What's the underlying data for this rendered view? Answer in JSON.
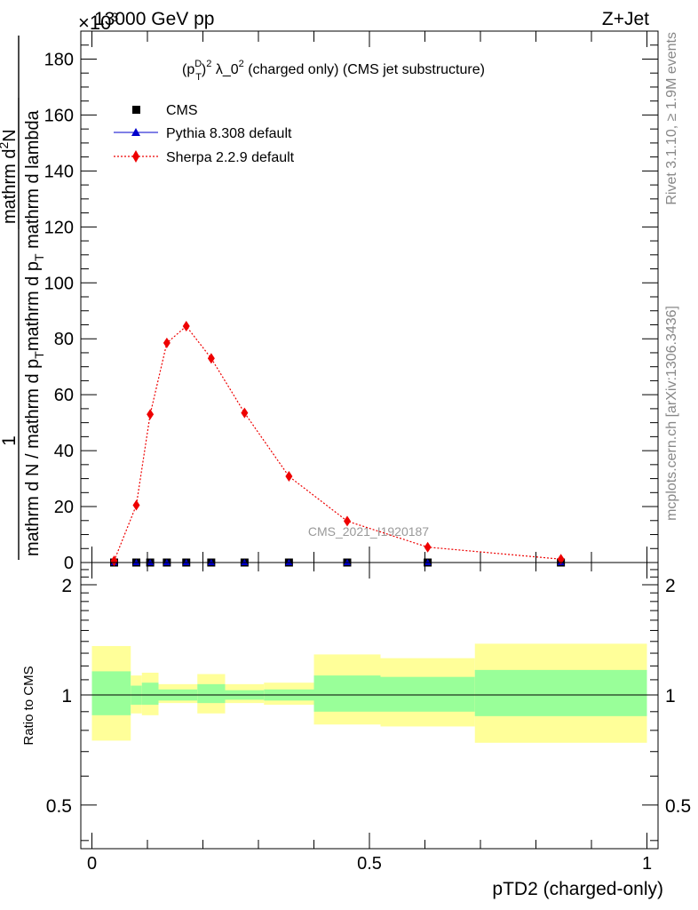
{
  "header": {
    "energy": "13000 GeV pp",
    "process": "Z+Jet",
    "scale_exponent": "×10",
    "scale_power": "3"
  },
  "side": {
    "rivet": "Rivet 3.1.10, ≥ 1.9M events",
    "url": "mcplots.cern.ch [arXiv:1306.3436]"
  },
  "chart_data": [
    {
      "type": "line",
      "title": "(p_T^D)^2 λ_0^2 (charged only) (CMS jet substructure)",
      "title_parts": {
        "a": "(p",
        "sup": "D",
        "sub": "T",
        "b": ")",
        "c": "2",
        "d": " λ_0",
        "e": "2",
        "f": " (charged only) (CMS jet substructure)"
      },
      "ylabel_parts": {
        "one": "1",
        "den_a": "mathrm d N / mathrm d p",
        "den_sub": "T",
        "den_b": "mathrm d N",
        "num_top": "mathrm d",
        "num_sup": "2",
        "num_b": "N",
        "mid": "mathrm d p",
        "mid_sub": "T",
        "tail": " mathrm d lambda"
      },
      "ylabel": "1 / (mathrm d N / mathrm d p_T) · mathrm d^2N / (mathrm d p_T mathrm d lambda)",
      "watermark": "CMS_2021_I1920187",
      "xlim": [
        -0.02,
        1.02
      ],
      "ylim": [
        0,
        190000
      ],
      "yticks": [
        0,
        20000,
        40000,
        60000,
        80000,
        100000,
        120000,
        140000,
        160000,
        180000
      ],
      "ytick_labels": [
        "0",
        "20",
        "40",
        "60",
        "80",
        "100",
        "120",
        "140",
        "160",
        "180"
      ],
      "xticks": [
        0,
        0.5,
        1
      ],
      "legend": {
        "placement": "top-left",
        "entries": [
          "CMS",
          "Pythia 8.308 default",
          "Sherpa 2.2.9 default"
        ]
      },
      "series": [
        {
          "name": "CMS",
          "color": "#000000",
          "marker": "square",
          "x": [
            0.04,
            0.08,
            0.105,
            0.135,
            0.17,
            0.215,
            0.275,
            0.355,
            0.46,
            0.605,
            0.845
          ],
          "y": [
            0,
            0,
            0,
            0,
            0,
            0,
            0,
            0,
            0,
            0,
            0
          ]
        },
        {
          "name": "Pythia 8.308 default",
          "color": "#0000cc",
          "marker": "triangle",
          "x": [
            0.04,
            0.08,
            0.105,
            0.135,
            0.17,
            0.215,
            0.275,
            0.355,
            0.46,
            0.605,
            0.845
          ],
          "y": [
            0,
            0,
            0,
            0,
            0,
            0,
            0,
            0,
            0,
            0,
            0
          ]
        },
        {
          "name": "Sherpa 2.2.9 default",
          "color": "#ee0000",
          "marker": "diamond",
          "linestyle": "dotted",
          "x": [
            0.04,
            0.08,
            0.105,
            0.135,
            0.17,
            0.215,
            0.275,
            0.355,
            0.46,
            0.605,
            0.845
          ],
          "y": [
            600,
            20500,
            53000,
            78500,
            84500,
            73000,
            53500,
            30800,
            14800,
            5500,
            1200
          ]
        }
      ]
    },
    {
      "type": "area",
      "ylabel": "Ratio to CMS",
      "xlabel": "pTD2 (charged-only)",
      "xlim": [
        -0.02,
        1.02
      ],
      "ylim": [
        0.38,
        2.3
      ],
      "log_y": true,
      "yticks": [
        0.5,
        1,
        2
      ],
      "ytick_labels": [
        "0.5",
        "1",
        "2"
      ],
      "xticks": [
        0,
        0.5,
        1
      ],
      "xtick_labels": [
        "0",
        "0.5",
        "1"
      ],
      "reference_line": 1,
      "bins": [
        {
          "lo": 0.0,
          "hi": 0.07,
          "inner": [
            0.88,
            1.16
          ],
          "outer": [
            0.75,
            1.36
          ]
        },
        {
          "lo": 0.07,
          "hi": 0.09,
          "inner": [
            0.94,
            1.06
          ],
          "outer": [
            0.89,
            1.13
          ]
        },
        {
          "lo": 0.09,
          "hi": 0.12,
          "inner": [
            0.94,
            1.08
          ],
          "outer": [
            0.88,
            1.15
          ]
        },
        {
          "lo": 0.12,
          "hi": 0.19,
          "inner": [
            0.965,
            1.035
          ],
          "outer": [
            0.95,
            1.07
          ]
        },
        {
          "lo": 0.19,
          "hi": 0.24,
          "inner": [
            0.95,
            1.07
          ],
          "outer": [
            0.89,
            1.14
          ]
        },
        {
          "lo": 0.24,
          "hi": 0.31,
          "inner": [
            0.97,
            1.03
          ],
          "outer": [
            0.95,
            1.07
          ]
        },
        {
          "lo": 0.31,
          "hi": 0.4,
          "inner": [
            0.965,
            1.035
          ],
          "outer": [
            0.94,
            1.08
          ]
        },
        {
          "lo": 0.4,
          "hi": 0.52,
          "inner": [
            0.9,
            1.13
          ],
          "outer": [
            0.83,
            1.29
          ]
        },
        {
          "lo": 0.52,
          "hi": 0.69,
          "inner": [
            0.9,
            1.12
          ],
          "outer": [
            0.82,
            1.26
          ]
        },
        {
          "lo": 0.69,
          "hi": 1.0,
          "inner": [
            0.875,
            1.17
          ],
          "outer": [
            0.74,
            1.38
          ]
        }
      ],
      "band_colors": {
        "inner": "#99ff99",
        "outer": "#ffff99"
      }
    }
  ]
}
